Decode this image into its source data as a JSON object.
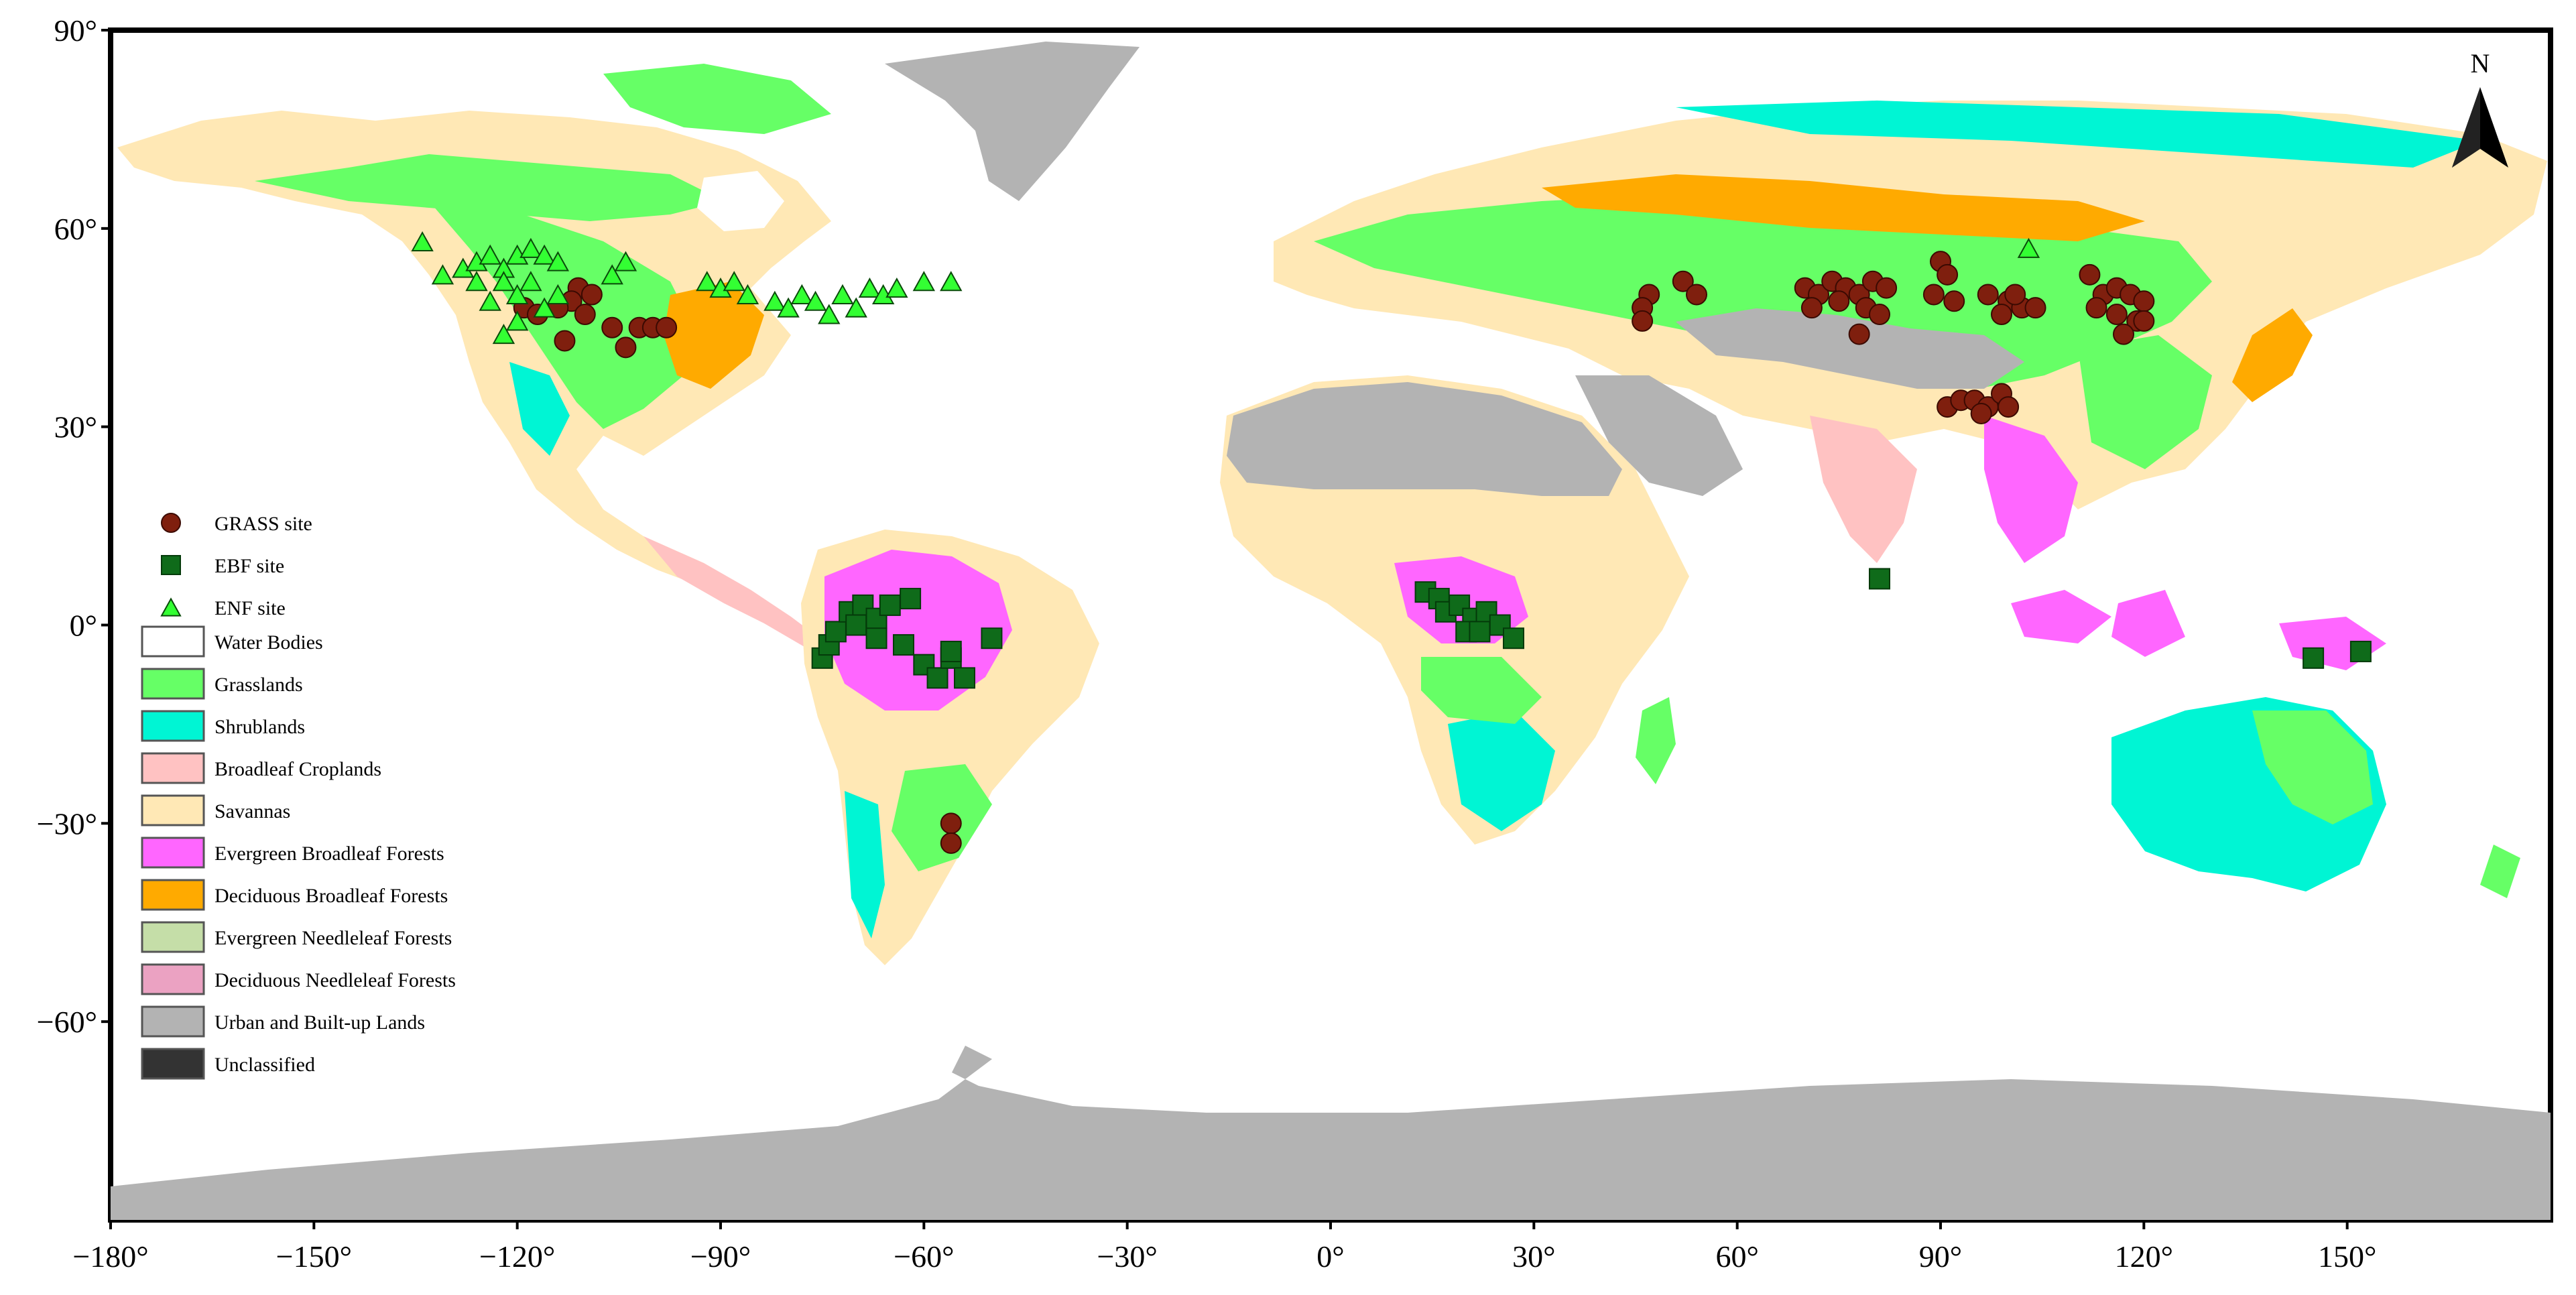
{
  "axes": {
    "x_ticks": [
      -180,
      -150,
      -120,
      -90,
      -60,
      -30,
      0,
      30,
      60,
      90,
      120,
      150
    ],
    "y_ticks": [
      90,
      60,
      30,
      0,
      -30,
      -60
    ],
    "x_range": [
      -180,
      180
    ],
    "y_range": [
      -90,
      90
    ]
  },
  "north_arrow_label": "N",
  "legend": {
    "sites": [
      {
        "label": "GRASS site",
        "shape": "circle",
        "color": "#7f1f0e"
      },
      {
        "label": "EBF site",
        "shape": "square",
        "color": "#0f6b1a"
      },
      {
        "label": "ENF site",
        "shape": "triangle",
        "color": "#33ff33"
      }
    ],
    "classes": [
      {
        "label": "Water Bodies",
        "color": "#ffffff"
      },
      {
        "label": "Grasslands",
        "color": "#66ff66"
      },
      {
        "label": "Shrublands",
        "color": "#00f5d4"
      },
      {
        "label": "Broadleaf Croplands",
        "color": "#ffc2c2"
      },
      {
        "label": "Savannas",
        "color": "#ffe8b5"
      },
      {
        "label": "Evergreen Broadleaf Forests",
        "color": "#ff66ff"
      },
      {
        "label": "Deciduous Broadleaf Forests",
        "color": "#ffaa00"
      },
      {
        "label": "Evergreen Needleleaf Forests",
        "color": "#c5dea8"
      },
      {
        "label": "Deciduous Needleleaf Forests",
        "color": "#eba2c2"
      },
      {
        "label": "Urban and Built-up Lands",
        "color": "#b3b3b3"
      },
      {
        "label": "Unclassified",
        "color": "#333333"
      }
    ]
  },
  "chart_data": {
    "type": "scatter",
    "x_label": "",
    "y_label": "",
    "series": [
      {
        "name": "GRASS site",
        "shape": "circle",
        "color": "#7f1f0e",
        "points": [
          [
            -111,
            51
          ],
          [
            -109,
            50
          ],
          [
            -112,
            49
          ],
          [
            -110,
            47
          ],
          [
            -114,
            48
          ],
          [
            -119,
            48
          ],
          [
            -117,
            47
          ],
          [
            -113,
            43
          ],
          [
            -106,
            45
          ],
          [
            -104,
            42
          ],
          [
            -102,
            45
          ],
          [
            -100,
            45
          ],
          [
            -98,
            45
          ],
          [
            47,
            50
          ],
          [
            46,
            48
          ],
          [
            46,
            46
          ],
          [
            52,
            52
          ],
          [
            54,
            50
          ],
          [
            70,
            51
          ],
          [
            72,
            50
          ],
          [
            74,
            52
          ],
          [
            76,
            51
          ],
          [
            78,
            50
          ],
          [
            80,
            52
          ],
          [
            82,
            51
          ],
          [
            71,
            48
          ],
          [
            75,
            49
          ],
          [
            79,
            48
          ],
          [
            78,
            44
          ],
          [
            81,
            47
          ],
          [
            90,
            55
          ],
          [
            91,
            53
          ],
          [
            89,
            50
          ],
          [
            92,
            49
          ],
          [
            97,
            50
          ],
          [
            100,
            49
          ],
          [
            102,
            48
          ],
          [
            99,
            47
          ],
          [
            104,
            48
          ],
          [
            101,
            50
          ],
          [
            91,
            33
          ],
          [
            93,
            34
          ],
          [
            95,
            34
          ],
          [
            97,
            33
          ],
          [
            99,
            35
          ],
          [
            100,
            33
          ],
          [
            96,
            32
          ],
          [
            112,
            53
          ],
          [
            114,
            50
          ],
          [
            116,
            51
          ],
          [
            118,
            50
          ],
          [
            120,
            49
          ],
          [
            113,
            48
          ],
          [
            116,
            47
          ],
          [
            119,
            46
          ],
          [
            117,
            44
          ],
          [
            120,
            46
          ],
          [
            -56,
            -30
          ],
          [
            -56,
            -33
          ]
        ]
      },
      {
        "name": "EBF site",
        "shape": "square",
        "color": "#0f6b1a",
        "points": [
          [
            -75,
            -5
          ],
          [
            -74,
            -3
          ],
          [
            -73,
            -1
          ],
          [
            -71,
            2
          ],
          [
            -69,
            3
          ],
          [
            -70,
            0
          ],
          [
            -67,
            1
          ],
          [
            -65,
            3
          ],
          [
            -62,
            4
          ],
          [
            -63,
            -3
          ],
          [
            -60,
            -6
          ],
          [
            -58,
            -8
          ],
          [
            -56,
            -5
          ],
          [
            -54,
            -8
          ],
          [
            -50,
            -2
          ],
          [
            -67,
            -2
          ],
          [
            -56,
            -4
          ],
          [
            14,
            5
          ],
          [
            16,
            4
          ],
          [
            17,
            2
          ],
          [
            19,
            3
          ],
          [
            21,
            1
          ],
          [
            23,
            2
          ],
          [
            25,
            0
          ],
          [
            20,
            -1
          ],
          [
            27,
            -2
          ],
          [
            22,
            -1
          ],
          [
            81,
            7
          ],
          [
            145,
            -5
          ],
          [
            152,
            -4
          ]
        ]
      },
      {
        "name": "ENF site",
        "shape": "triangle",
        "color": "#33ff33",
        "points": [
          [
            -134,
            58
          ],
          [
            -131,
            53
          ],
          [
            -128,
            54
          ],
          [
            -126,
            55
          ],
          [
            -124,
            56
          ],
          [
            -122,
            54
          ],
          [
            -120,
            56
          ],
          [
            -118,
            57
          ],
          [
            -116,
            56
          ],
          [
            -114,
            55
          ],
          [
            -122,
            52
          ],
          [
            -120,
            50
          ],
          [
            -126,
            52
          ],
          [
            -118,
            52
          ],
          [
            -124,
            49
          ],
          [
            -120,
            46
          ],
          [
            -122,
            44
          ],
          [
            -114,
            50
          ],
          [
            -116,
            48
          ],
          [
            -106,
            53
          ],
          [
            -104,
            55
          ],
          [
            -92,
            52
          ],
          [
            -90,
            51
          ],
          [
            -88,
            52
          ],
          [
            -86,
            50
          ],
          [
            -82,
            49
          ],
          [
            -80,
            48
          ],
          [
            -78,
            50
          ],
          [
            -76,
            49
          ],
          [
            -74,
            47
          ],
          [
            -72,
            50
          ],
          [
            -70,
            48
          ],
          [
            -68,
            51
          ],
          [
            -66,
            50
          ],
          [
            -64,
            51
          ],
          [
            -60,
            52
          ],
          [
            -56,
            52
          ],
          [
            103,
            57
          ]
        ]
      }
    ]
  }
}
